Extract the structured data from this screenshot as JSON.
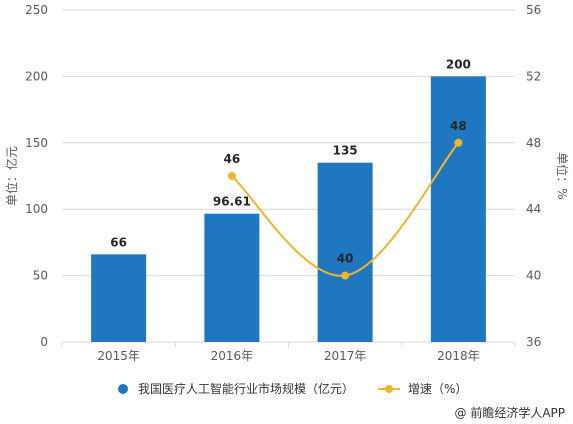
{
  "chart_data": {
    "type": "bar",
    "categories": [
      "2015年",
      "2016年",
      "2017年",
      "2018年"
    ],
    "series": [
      {
        "name": "我国医疗人工智能行业市场规模（亿元）",
        "type": "bar",
        "axis": "left",
        "values": [
          66,
          96.61,
          135,
          200
        ],
        "labels": [
          "66",
          "96.61",
          "135",
          "200"
        ],
        "color": "#1f77c2"
      },
      {
        "name": "增速（%）",
        "type": "line",
        "axis": "right",
        "values": [
          null,
          46,
          40,
          48
        ],
        "labels": [
          "",
          "46",
          "40",
          "48"
        ],
        "color": "#f0b52a"
      }
    ],
    "ylabel": "单位：亿元",
    "y2label": "单位：%",
    "ylim": [
      0,
      250
    ],
    "y2lim": [
      36,
      56
    ],
    "yticks": [
      "0",
      "50",
      "100",
      "150",
      "200",
      "250"
    ],
    "y2ticks": [
      "36",
      "40",
      "44",
      "48",
      "52",
      "56"
    ],
    "grid": true,
    "legend_position": "bottom"
  },
  "legend": {
    "bar_label": "我国医疗人工智能行业市场规模（亿元）",
    "line_label": "增速（%）"
  },
  "source": "@ 前瞻经济学人APP",
  "colors": {
    "bar": "#1f77c2",
    "line": "#f0b52a",
    "grid": "#d9d9d9"
  }
}
